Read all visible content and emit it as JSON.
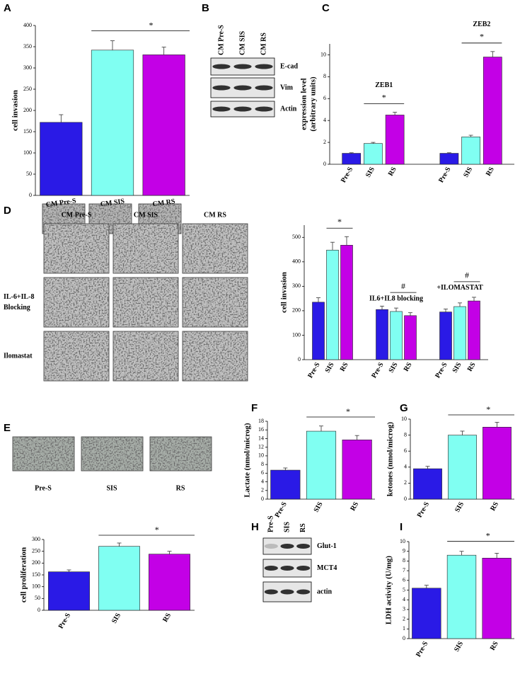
{
  "panel_labels": [
    "A",
    "B",
    "C",
    "D",
    "E",
    "F",
    "G",
    "H",
    "I"
  ],
  "chart_data": [
    {
      "type": "bar",
      "ylabel": "cell invasion",
      "categories": [
        "CM Pre-S",
        "CM SIS",
        "CM RS"
      ],
      "values": [
        172,
        342,
        331
      ],
      "errors": [
        18,
        22,
        18
      ],
      "colors": [
        "#2a1ae6",
        "#80fff2",
        "#c300e6"
      ],
      "ylim": [
        0,
        400
      ],
      "yticks": [
        0,
        50,
        100,
        150,
        200,
        250,
        300,
        350,
        400
      ],
      "annotation": "*"
    },
    {
      "type": "grouped_bar",
      "ylabel": [
        "expression level",
        "(arbitrary units)"
      ],
      "categories": [
        "Pre-S",
        "SIS",
        "RS"
      ],
      "colors": [
        "#2a1ae6",
        "#80fff2",
        "#c300e6"
      ],
      "groups": [
        {
          "name": "ZEB1",
          "values": [
            1,
            1.9,
            4.5
          ],
          "errors": [
            0.05,
            0.1,
            0.25
          ],
          "annotation": "*"
        },
        {
          "name": "ZEB2",
          "values": [
            1,
            2.5,
            9.8
          ],
          "errors": [
            0.05,
            0.15,
            0.5
          ],
          "annotation": "*"
        }
      ],
      "ylim": [
        0,
        11
      ],
      "yticks": [
        0,
        2,
        4,
        6,
        8,
        10
      ]
    },
    {
      "type": "grouped_bar",
      "ylabel": "cell invasion",
      "categories": [
        "Pre-S",
        "SIS",
        "RS"
      ],
      "colors": [
        "#2a1ae6",
        "#80fff2",
        "#c300e6"
      ],
      "groups": [
        {
          "name": null,
          "values": [
            235,
            448,
            468
          ],
          "errors": [
            18,
            32,
            35
          ],
          "annotation": "*"
        },
        {
          "name": "IL6+IL8 blocking",
          "values": [
            205,
            197,
            180
          ],
          "errors": [
            14,
            14,
            12
          ],
          "annotation": "#"
        },
        {
          "name": "+ILOMASTAT",
          "values": [
            195,
            217,
            240
          ],
          "errors": [
            12,
            15,
            15
          ],
          "annotation": "#"
        }
      ],
      "ylim": [
        0,
        550
      ],
      "yticks": [
        0,
        100,
        200,
        300,
        400,
        500
      ]
    },
    {
      "type": "bar",
      "ylabel": "cell proliferation",
      "categories": [
        "Pre-S",
        "SIS",
        "RS"
      ],
      "values": [
        163,
        271,
        238
      ],
      "errors": [
        8,
        14,
        12
      ],
      "colors": [
        "#2a1ae6",
        "#80fff2",
        "#c300e6"
      ],
      "ylim": [
        0,
        300
      ],
      "yticks": [
        0,
        50,
        100,
        150,
        200,
        250,
        300
      ],
      "annotation": "*"
    },
    {
      "type": "bar",
      "ylabel": "Lactate (nmol/microg)",
      "categories": [
        "Pre-S",
        "SIS",
        "RS"
      ],
      "values": [
        6.7,
        15.7,
        13.7
      ],
      "errors": [
        0.5,
        1.2,
        1.0
      ],
      "colors": [
        "#2a1ae6",
        "#80fff2",
        "#c300e6"
      ],
      "ylim": [
        0,
        18
      ],
      "yticks": [
        0,
        2,
        4,
        6,
        8,
        10,
        12,
        14,
        16,
        18
      ],
      "annotation": "*"
    },
    {
      "type": "bar",
      "ylabel": "ketones (nmol/microg)",
      "categories": [
        "Pre-S",
        "SIS",
        "RS"
      ],
      "values": [
        3.8,
        8,
        9
      ],
      "errors": [
        0.3,
        0.5,
        0.6
      ],
      "colors": [
        "#2a1ae6",
        "#80fff2",
        "#c300e6"
      ],
      "ylim": [
        0,
        10
      ],
      "yticks": [
        0,
        2,
        4,
        6,
        8,
        10
      ],
      "annotation": "*"
    },
    {
      "type": "bar",
      "ylabel": "LDH activity (U/mg)",
      "categories": [
        "Pre-S",
        "SIS",
        "RS"
      ],
      "values": [
        5.2,
        8.6,
        8.3
      ],
      "errors": [
        0.3,
        0.4,
        0.5
      ],
      "colors": [
        "#2a1ae6",
        "#80fff2",
        "#c300e6"
      ],
      "ylim": [
        0,
        10
      ],
      "yticks": [
        0,
        1,
        2,
        3,
        4,
        5,
        6,
        7,
        8,
        9,
        10
      ],
      "annotation": "*"
    }
  ],
  "blots": [
    {
      "lanes": [
        "CM Pre-S",
        "CM SIS",
        "CM RS"
      ],
      "rows": [
        "E-cad",
        "Vim",
        "Actin"
      ]
    },
    {
      "lanes": [
        "Pre-S",
        "SIS",
        "RS"
      ],
      "rows": [
        "Glut-1",
        "MCT4",
        "actin"
      ]
    }
  ],
  "images": [
    {
      "columns": [
        "CM Pre-S",
        "CM SIS",
        "CM RS"
      ],
      "rows": [
        null,
        [
          "IL-6+IL-8",
          "Blocking"
        ],
        [
          "Ilomastat"
        ]
      ]
    },
    {
      "labels": [
        "Pre-S",
        "SIS",
        "RS"
      ]
    }
  ]
}
